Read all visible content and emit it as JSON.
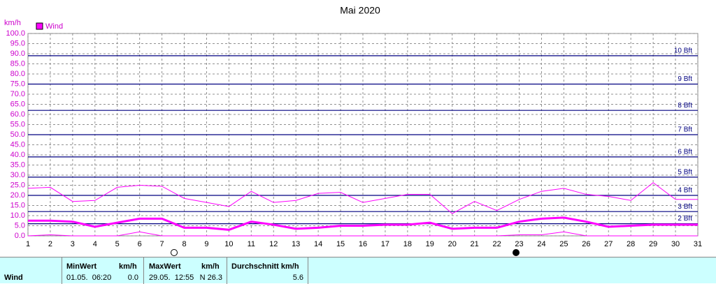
{
  "chart_data": {
    "type": "line",
    "title": "Mai 2020",
    "y_unit": "km/h",
    "x": [
      1,
      2,
      3,
      4,
      5,
      6,
      7,
      8,
      9,
      10,
      11,
      12,
      13,
      14,
      15,
      16,
      17,
      18,
      19,
      20,
      21,
      22,
      23,
      24,
      25,
      26,
      27,
      28,
      29,
      30,
      31
    ],
    "xlim": [
      1,
      31
    ],
    "xticks": [
      1,
      2,
      3,
      4,
      5,
      6,
      7,
      8,
      9,
      10,
      11,
      12,
      13,
      14,
      15,
      16,
      17,
      18,
      19,
      20,
      21,
      22,
      23,
      24,
      25,
      26,
      27,
      28,
      29,
      30,
      31
    ],
    "ylim": [
      0,
      100
    ],
    "yticks": [
      {
        "value": 0,
        "label": "0.0"
      },
      {
        "value": 5,
        "label": "5.0"
      },
      {
        "value": 10,
        "label": "10.0"
      },
      {
        "value": 15,
        "label": "15.0"
      },
      {
        "value": 20,
        "label": "20.0"
      },
      {
        "value": 25,
        "label": "25.0"
      },
      {
        "value": 30,
        "label": "30.0"
      },
      {
        "value": 35,
        "label": "35.0"
      },
      {
        "value": 40,
        "label": "40.0"
      },
      {
        "value": 45,
        "label": "45.0"
      },
      {
        "value": 50,
        "label": "50.0"
      },
      {
        "value": 55,
        "label": "55.0"
      },
      {
        "value": 60,
        "label": "60.0"
      },
      {
        "value": 65,
        "label": "65.0"
      },
      {
        "value": 70,
        "label": "70.0"
      },
      {
        "value": 75,
        "label": "75.0"
      },
      {
        "value": 80,
        "label": "80.0"
      },
      {
        "value": 85,
        "label": "85.0"
      },
      {
        "value": 90,
        "label": "90.0"
      },
      {
        "value": 95,
        "label": "95.0"
      },
      {
        "value": 100,
        "label": "100.0"
      }
    ],
    "grid": true,
    "series": [
      {
        "name": "Wind",
        "color": "#ff00ff",
        "width": 3,
        "values": [
          7.5,
          7.5,
          7,
          4.5,
          6.5,
          8.5,
          8.5,
          4,
          4,
          3,
          7,
          5.5,
          3.5,
          4,
          5,
          5,
          5.5,
          5.5,
          6.5,
          3.5,
          4,
          4,
          7,
          8.5,
          9,
          7,
          4.5,
          5,
          5.5,
          5.5,
          5.5
        ]
      },
      {
        "color": "#ff00ff",
        "width": 1,
        "values": [
          23.5,
          24,
          17,
          17.5,
          24,
          25,
          24.5,
          18.5,
          16.5,
          14.5,
          22,
          16.5,
          17.5,
          21,
          21.5,
          16.5,
          18.5,
          20.5,
          20.5,
          11,
          17,
          12.5,
          18,
          22,
          23.5,
          20.5,
          19.5,
          17.5,
          26.3,
          18,
          18
        ]
      },
      {
        "color": "#ff00ff",
        "width": 1,
        "values": [
          0,
          0.5,
          0,
          0,
          0,
          2,
          0,
          0,
          0,
          0,
          0,
          0,
          0,
          0,
          0,
          0,
          0,
          0,
          0,
          0,
          0,
          0,
          0.5,
          0.5,
          2,
          0,
          0,
          0,
          0,
          0,
          0
        ]
      }
    ],
    "reference_lines": [
      {
        "value": 6,
        "label": "2 Bft"
      },
      {
        "value": 12,
        "label": "3 Bft"
      },
      {
        "value": 20,
        "label": "4 Bft"
      },
      {
        "value": 29,
        "label": "5 Bft"
      },
      {
        "value": 39,
        "label": "6 Bft"
      },
      {
        "value": 50,
        "label": "7 Bft"
      },
      {
        "value": 62,
        "label": "8 Bft"
      },
      {
        "value": 75,
        "label": "9 Bft"
      },
      {
        "value": 89,
        "label": "10 Bft"
      }
    ],
    "reference_color": "#000080"
  },
  "summary_table": {
    "row_label": "Wind",
    "min": {
      "header": "MinWert",
      "unit": "km/h",
      "time": "01.05.  06:20",
      "value": "0.0"
    },
    "max": {
      "header": "MaxWert",
      "unit": "km/h",
      "time": "29.05.  12:55",
      "value": "N 26.3"
    },
    "avg": {
      "header": "Durchschnitt km/h",
      "value": "5.6"
    }
  }
}
